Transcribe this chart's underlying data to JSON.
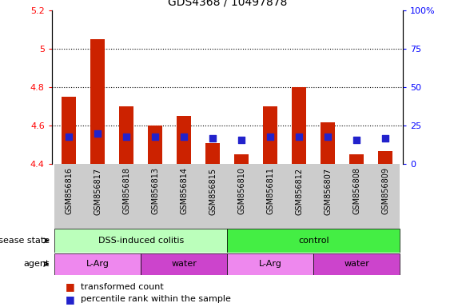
{
  "title": "GDS4368 / 10497878",
  "samples": [
    "GSM856816",
    "GSM856817",
    "GSM856818",
    "GSM856813",
    "GSM856814",
    "GSM856815",
    "GSM856810",
    "GSM856811",
    "GSM856812",
    "GSM856807",
    "GSM856808",
    "GSM856809"
  ],
  "transformed_count": [
    4.75,
    5.05,
    4.7,
    4.6,
    4.65,
    4.51,
    4.45,
    4.7,
    4.8,
    4.62,
    4.45,
    4.47
  ],
  "percentile_rank": [
    18,
    20,
    18,
    18,
    18,
    17,
    16,
    18,
    18,
    18,
    16,
    17
  ],
  "ymin": 4.4,
  "ymax": 5.2,
  "yticks": [
    4.4,
    4.6,
    4.8,
    5.0,
    5.2
  ],
  "ytick_labels": [
    "4.4",
    "4.6",
    "4.8",
    "5",
    "5.2"
  ],
  "y2min": 0,
  "y2max": 100,
  "y2ticks": [
    0,
    25,
    50,
    75,
    100
  ],
  "y2tick_labels": [
    "0",
    "25",
    "50",
    "75",
    "100%"
  ],
  "bar_color": "#cc2200",
  "dot_color": "#2222cc",
  "disease_state_groups": [
    {
      "label": "DSS-induced colitis",
      "start": 0,
      "end": 6,
      "color": "#bbffbb"
    },
    {
      "label": "control",
      "start": 6,
      "end": 12,
      "color": "#44ee44"
    }
  ],
  "agent_groups": [
    {
      "label": "L-Arg",
      "start": 0,
      "end": 3,
      "color": "#ee88ee"
    },
    {
      "label": "water",
      "start": 3,
      "end": 6,
      "color": "#cc44cc"
    },
    {
      "label": "L-Arg",
      "start": 6,
      "end": 9,
      "color": "#ee88ee"
    },
    {
      "label": "water",
      "start": 9,
      "end": 12,
      "color": "#cc44cc"
    }
  ],
  "legend_items": [
    {
      "label": "transformed count",
      "color": "#cc2200"
    },
    {
      "label": "percentile rank within the sample",
      "color": "#2222cc"
    }
  ],
  "bar_width": 0.5,
  "dot_size": 30,
  "gray_bg": "#cccccc"
}
